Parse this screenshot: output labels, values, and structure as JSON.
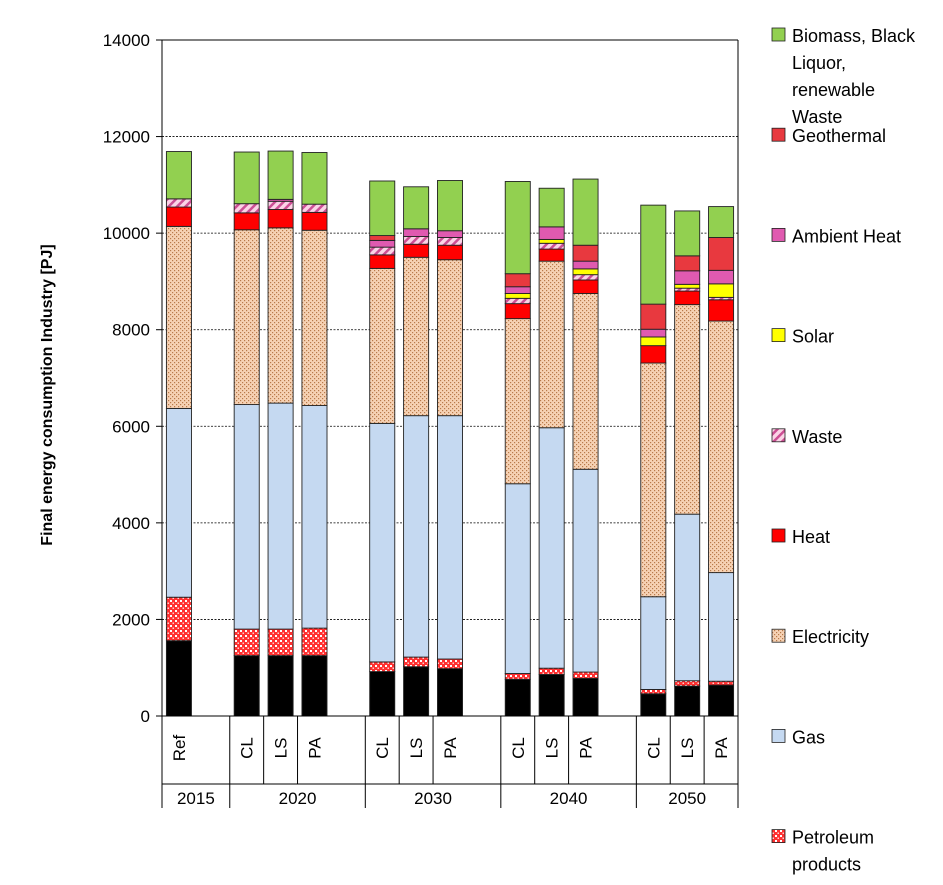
{
  "chart_data": {
    "type": "bar",
    "stacked": true,
    "ylabel": "Final energy consumption Industry [PJ]",
    "ylim": [
      0,
      14000
    ],
    "yticks": [
      0,
      2000,
      4000,
      6000,
      8000,
      10000,
      12000,
      14000
    ],
    "grid": true,
    "legend_position": "right",
    "groups": [
      {
        "year": "2015",
        "bars": [
          "Ref"
        ]
      },
      {
        "year": "2020",
        "bars": [
          "CL",
          "LS",
          "PA"
        ]
      },
      {
        "year": "2030",
        "bars": [
          "CL",
          "LS",
          "PA"
        ]
      },
      {
        "year": "2040",
        "bars": [
          "CL",
          "LS",
          "PA"
        ]
      },
      {
        "year": "2050",
        "bars": [
          "CL",
          "LS",
          "PA"
        ]
      }
    ],
    "series": [
      {
        "key": "coal",
        "color": "#000000",
        "pattern": "none",
        "values": [
          1560,
          1250,
          1250,
          1250,
          920,
          1020,
          980,
          760,
          860,
          780,
          460,
          620,
          640
        ]
      },
      {
        "key": "petroleum",
        "name": "Petroleum products",
        "color": "#ff0000",
        "pattern": "dots",
        "values": [
          900,
          550,
          550,
          570,
          200,
          200,
          200,
          120,
          130,
          130,
          90,
          110,
          80
        ]
      },
      {
        "key": "gas",
        "name": "Gas",
        "color": "#c5d9f1",
        "pattern": "none",
        "values": [
          3910,
          4650,
          4680,
          4610,
          4940,
          5000,
          5040,
          3930,
          4980,
          4200,
          1920,
          3450,
          2250
        ]
      },
      {
        "key": "electricity",
        "name": "Electricity",
        "color": "#f8cbad",
        "pattern": "dots-brown",
        "values": [
          3770,
          3620,
          3630,
          3630,
          3210,
          3280,
          3230,
          3420,
          3450,
          3640,
          4840,
          4340,
          5210
        ]
      },
      {
        "key": "heat",
        "name": "Heat",
        "color": "#ff0000",
        "pattern": "none",
        "values": [
          400,
          350,
          380,
          370,
          280,
          270,
          300,
          310,
          250,
          280,
          360,
          280,
          440
        ]
      },
      {
        "key": "waste",
        "name": "Waste",
        "color": "#f4b6d2",
        "pattern": "hatch",
        "values": [
          170,
          190,
          170,
          170,
          160,
          160,
          160,
          110,
          120,
          110,
          0,
          60,
          50
        ]
      },
      {
        "key": "solar",
        "name": "Solar",
        "color": "#ffff00",
        "pattern": "none",
        "values": [
          0,
          0,
          0,
          0,
          0,
          0,
          0,
          100,
          80,
          120,
          180,
          80,
          280
        ]
      },
      {
        "key": "ambient",
        "name": "Ambient Heat",
        "color": "#e05ab0",
        "pattern": "none",
        "values": [
          0,
          0,
          40,
          0,
          140,
          160,
          140,
          140,
          260,
          160,
          160,
          280,
          280
        ]
      },
      {
        "key": "geothermal",
        "name": "Geothermal",
        "color": "#e8393f",
        "pattern": "none",
        "values": [
          0,
          0,
          0,
          0,
          100,
          0,
          0,
          270,
          0,
          330,
          520,
          310,
          680
        ]
      },
      {
        "key": "biomass",
        "name": "Biomass, Black Liquor, renewable Waste",
        "color": "#92d050",
        "pattern": "none",
        "values": [
          980,
          1070,
          1000,
          1070,
          1130,
          870,
          1040,
          1910,
          800,
          1370,
          2050,
          930,
          640
        ]
      }
    ]
  },
  "legend": [
    {
      "key": "biomass",
      "lines": [
        "Biomass, Black",
        "Liquor,",
        "renewable",
        "Waste"
      ]
    },
    {
      "key": "geothermal",
      "lines": [
        "Geothermal"
      ]
    },
    {
      "key": "ambient",
      "lines": [
        "Ambient Heat"
      ]
    },
    {
      "key": "solar",
      "lines": [
        "Solar"
      ]
    },
    {
      "key": "waste",
      "lines": [
        "Waste"
      ]
    },
    {
      "key": "heat",
      "lines": [
        "Heat"
      ]
    },
    {
      "key": "electricity",
      "lines": [
        "Electricity"
      ]
    },
    {
      "key": "gas",
      "lines": [
        "Gas"
      ]
    },
    {
      "key": "petroleum",
      "lines": [
        "Petroleum",
        "products"
      ]
    }
  ]
}
